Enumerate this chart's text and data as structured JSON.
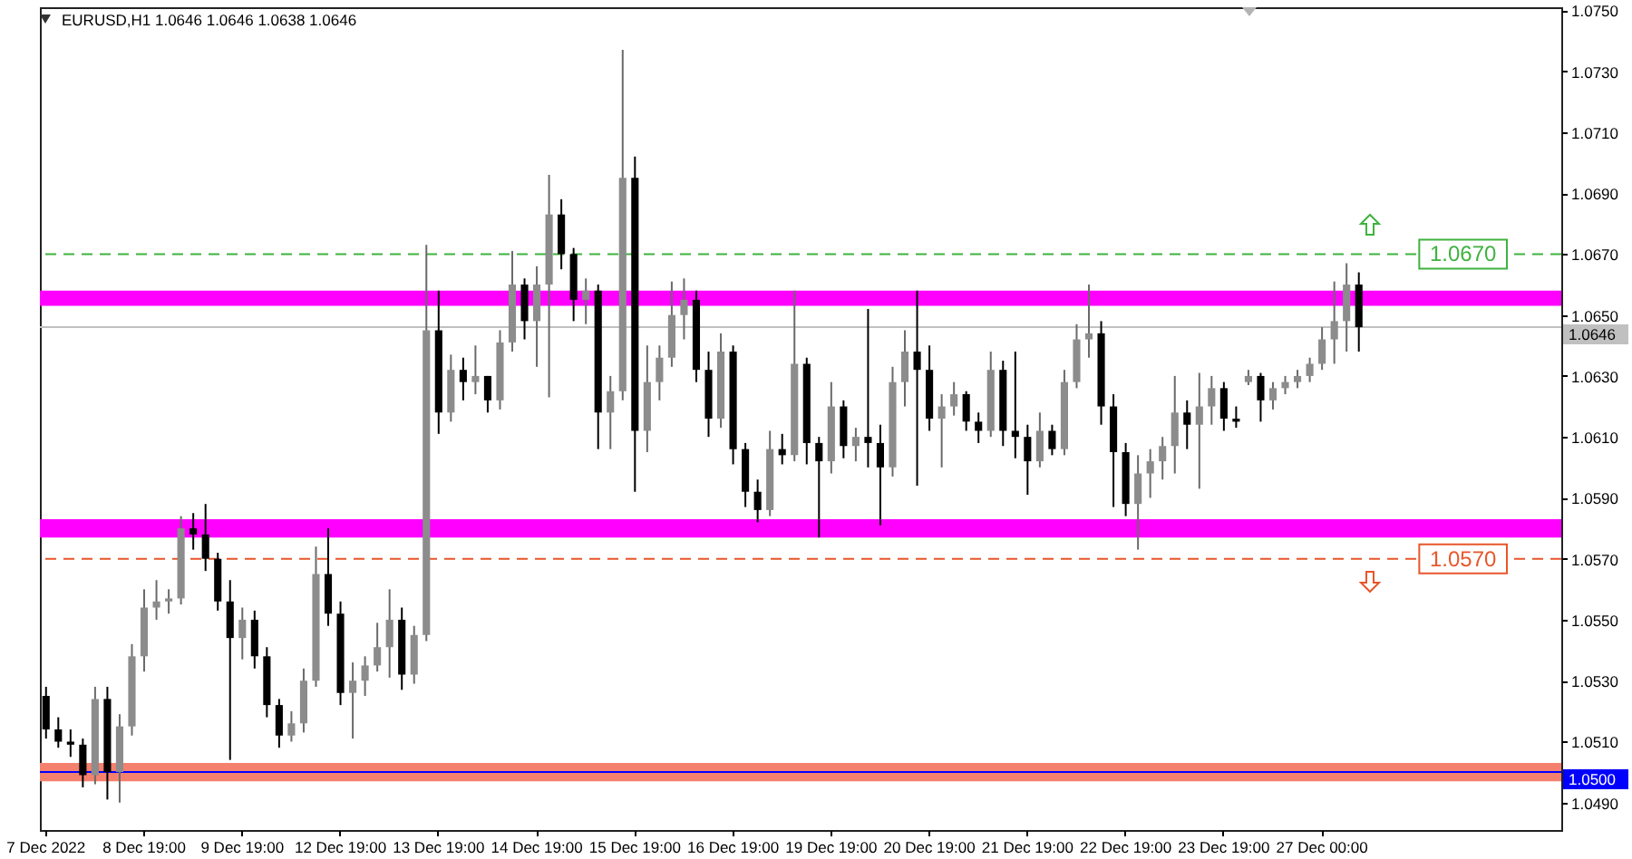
{
  "chart_data": {
    "type": "candlestick",
    "title": "EURUSD,H1 1.0646 1.0646 1.0638 1.0646",
    "categories": [
      "7 Dec 2022",
      null,
      null,
      null,
      null,
      null,
      null,
      null,
      "8 Dec 19:00",
      null,
      null,
      null,
      null,
      null,
      null,
      null,
      "9 Dec 19:00",
      null,
      null,
      null,
      null,
      null,
      null,
      null,
      "12 Dec 19:00",
      null,
      null,
      null,
      null,
      null,
      null,
      null,
      "13 Dec 19:00",
      null,
      null,
      null,
      null,
      null,
      null,
      null,
      "14 Dec 19:00",
      null,
      null,
      null,
      null,
      null,
      null,
      null,
      "15 Dec 19:00",
      null,
      null,
      null,
      null,
      null,
      null,
      null,
      "16 Dec 19:00",
      null,
      null,
      null,
      null,
      null,
      null,
      null,
      "19 Dec 19:00",
      null,
      null,
      null,
      null,
      null,
      null,
      null,
      "20 Dec 19:00",
      null,
      null,
      null,
      null,
      null,
      null,
      null,
      "21 Dec 19:00",
      null,
      null,
      null,
      null,
      null,
      null,
      null,
      "22 Dec 19:00",
      null,
      null,
      null,
      null,
      null,
      null,
      null,
      "23 Dec 19:00",
      null,
      null,
      null,
      null,
      null,
      null,
      null,
      "27 Dec 00:00",
      null,
      null,
      null,
      null,
      null,
      null,
      null,
      null,
      null,
      null,
      null,
      null,
      null,
      null,
      null,
      null,
      null,
      null,
      null
    ],
    "ohlc": [
      [
        1.0525,
        1.0528,
        1.0511,
        1.0514
      ],
      [
        1.0514,
        1.0518,
        1.0508,
        1.051
      ],
      [
        1.051,
        1.0514,
        1.0505,
        1.0509
      ],
      [
        1.0509,
        1.0511,
        1.0495,
        1.0499
      ],
      [
        1.0499,
        1.0528,
        1.0496,
        1.0524
      ],
      [
        1.0524,
        1.0528,
        1.0491,
        1.05
      ],
      [
        1.05,
        1.0519,
        1.049,
        1.0515
      ],
      [
        1.0515,
        1.0542,
        1.0512,
        1.0538
      ],
      [
        1.0538,
        1.056,
        1.0533,
        1.0554
      ],
      [
        1.0554,
        1.0563,
        1.055,
        1.0556
      ],
      [
        1.0556,
        1.056,
        1.0552,
        1.0557
      ],
      [
        1.0557,
        1.0584,
        1.0555,
        1.058
      ],
      [
        1.058,
        1.0585,
        1.0573,
        1.0578
      ],
      [
        1.0578,
        1.0588,
        1.0566,
        1.057
      ],
      [
        1.057,
        1.0572,
        1.0553,
        1.0556
      ],
      [
        1.0556,
        1.0563,
        1.0504,
        1.0544
      ],
      [
        1.0544,
        1.0554,
        1.0537,
        1.055
      ],
      [
        1.055,
        1.0553,
        1.0534,
        1.0538
      ],
      [
        1.0538,
        1.0541,
        1.0518,
        1.0522
      ],
      [
        1.0522,
        1.0524,
        1.0508,
        1.0512
      ],
      [
        1.0512,
        1.052,
        1.051,
        1.0516
      ],
      [
        1.0516,
        1.0534,
        1.0513,
        1.053
      ],
      [
        1.053,
        1.0574,
        1.0528,
        1.0565
      ],
      [
        1.0565,
        1.058,
        1.0548,
        1.0552
      ],
      [
        1.0552,
        1.0556,
        1.0522,
        1.0526
      ],
      [
        1.0526,
        1.0536,
        1.0511,
        1.053
      ],
      [
        1.053,
        1.0538,
        1.0525,
        1.0535
      ],
      [
        1.0535,
        1.0549,
        1.0533,
        1.0541
      ],
      [
        1.0541,
        1.056,
        1.0531,
        1.055
      ],
      [
        1.055,
        1.0554,
        1.0527,
        1.0532
      ],
      [
        1.0532,
        1.0548,
        1.0529,
        1.0545
      ],
      [
        1.0545,
        1.0673,
        1.0543,
        1.0645
      ],
      [
        1.0645,
        1.0658,
        1.0611,
        1.0618
      ],
      [
        1.0618,
        1.0637,
        1.0615,
        1.0632
      ],
      [
        1.0632,
        1.0636,
        1.0622,
        1.0628
      ],
      [
        1.0628,
        1.064,
        1.0624,
        1.063
      ],
      [
        1.063,
        1.063,
        1.0618,
        1.0622
      ],
      [
        1.0622,
        1.0645,
        1.0619,
        1.0641
      ],
      [
        1.0641,
        1.0671,
        1.0638,
        1.066
      ],
      [
        1.066,
        1.0662,
        1.0642,
        1.0648
      ],
      [
        1.0648,
        1.0666,
        1.0633,
        1.066
      ],
      [
        1.066,
        1.0696,
        1.0623,
        1.0683
      ],
      [
        1.0683,
        1.0688,
        1.0665,
        1.067
      ],
      [
        1.067,
        1.0672,
        1.0648,
        1.0655
      ],
      [
        1.0655,
        1.0662,
        1.0647,
        1.0658
      ],
      [
        1.0658,
        1.066,
        1.0606,
        1.0618
      ],
      [
        1.0618,
        1.063,
        1.0606,
        1.0625
      ],
      [
        1.0625,
        1.0737,
        1.0622,
        1.0695
      ],
      [
        1.0695,
        1.0702,
        1.0592,
        1.0612
      ],
      [
        1.0612,
        1.064,
        1.0605,
        1.0628
      ],
      [
        1.0628,
        1.064,
        1.0622,
        1.0636
      ],
      [
        1.0636,
        1.0661,
        1.0633,
        1.065
      ],
      [
        1.065,
        1.0662,
        1.0642,
        1.0655
      ],
      [
        1.0655,
        1.0658,
        1.0628,
        1.0632
      ],
      [
        1.0632,
        1.0638,
        1.061,
        1.0616
      ],
      [
        1.0616,
        1.0644,
        1.0613,
        1.0638
      ],
      [
        1.0638,
        1.064,
        1.0601,
        1.0606
      ],
      [
        1.0606,
        1.0608,
        1.0587,
        1.0592
      ],
      [
        1.0592,
        1.0596,
        1.0582,
        1.0586
      ],
      [
        1.0586,
        1.0612,
        1.0584,
        1.0606
      ],
      [
        1.0606,
        1.0611,
        1.0601,
        1.0604
      ],
      [
        1.0604,
        1.0658,
        1.0602,
        1.0634
      ],
      [
        1.0634,
        1.0636,
        1.0601,
        1.0608
      ],
      [
        1.0608,
        1.061,
        1.0577,
        1.0602
      ],
      [
        1.0602,
        1.0628,
        1.0598,
        1.062
      ],
      [
        1.062,
        1.0622,
        1.0603,
        1.0607
      ],
      [
        1.0607,
        1.0613,
        1.0602,
        1.061
      ],
      [
        1.061,
        1.0652,
        1.06,
        1.0608
      ],
      [
        1.0608,
        1.0614,
        1.0581,
        1.06
      ],
      [
        1.06,
        1.0633,
        1.0597,
        1.0628
      ],
      [
        1.0628,
        1.0645,
        1.062,
        1.0638
      ],
      [
        1.0638,
        1.0658,
        1.0594,
        1.0632
      ],
      [
        1.0632,
        1.064,
        1.0612,
        1.0616
      ],
      [
        1.0616,
        1.0624,
        1.06,
        1.062
      ],
      [
        1.062,
        1.0628,
        1.0617,
        1.0624
      ],
      [
        1.0624,
        1.0625,
        1.0612,
        1.0615
      ],
      [
        1.0615,
        1.0618,
        1.0608,
        1.0612
      ],
      [
        1.0612,
        1.0638,
        1.061,
        1.0632
      ],
      [
        1.0632,
        1.0635,
        1.0607,
        1.0612
      ],
      [
        1.0612,
        1.0638,
        1.0603,
        1.061
      ],
      [
        1.061,
        1.0614,
        1.0591,
        1.0602
      ],
      [
        1.0602,
        1.0618,
        1.06,
        1.0612
      ],
      [
        1.0612,
        1.0614,
        1.0604,
        1.0606
      ],
      [
        1.0606,
        1.0632,
        1.0604,
        1.0628
      ],
      [
        1.0628,
        1.0647,
        1.0626,
        1.0642
      ],
      [
        1.0642,
        1.066,
        1.0636,
        1.0644
      ],
      [
        1.0644,
        1.0648,
        1.0614,
        1.062
      ],
      [
        1.062,
        1.0624,
        1.0587,
        1.0605
      ],
      [
        1.0605,
        1.0608,
        1.0584,
        1.0588
      ],
      [
        1.0588,
        1.0604,
        1.0573,
        1.0598
      ],
      [
        1.0598,
        1.0606,
        1.059,
        1.0602
      ],
      [
        1.0602,
        1.061,
        1.0596,
        1.0607
      ],
      [
        1.0607,
        1.063,
        1.0598,
        1.0618
      ],
      [
        1.0618,
        1.0622,
        1.0606,
        1.0614
      ],
      [
        1.0614,
        1.0631,
        1.0593,
        1.062
      ],
      [
        1.062,
        1.063,
        1.0614,
        1.0626
      ],
      [
        1.0626,
        1.0628,
        1.0612,
        1.0616
      ],
      [
        1.0616,
        1.062,
        1.0613,
        1.0615
      ],
      [
        1.0628,
        1.0632,
        1.0627,
        1.063
      ],
      [
        1.063,
        1.0631,
        1.0615,
        1.0622
      ],
      [
        1.0622,
        1.0628,
        1.0619,
        1.0626
      ],
      [
        1.0626,
        1.063,
        1.0624,
        1.0628
      ],
      [
        1.0628,
        1.0632,
        1.0626,
        1.063
      ],
      [
        1.063,
        1.0636,
        1.0628,
        1.0634
      ],
      [
        1.0634,
        1.0646,
        1.0632,
        1.0642
      ],
      [
        1.0642,
        1.0661,
        1.0634,
        1.0648
      ],
      [
        1.0648,
        1.0667,
        1.0638,
        1.066
      ],
      [
        1.066,
        1.0664,
        1.0638,
        1.0646
      ],
      null,
      null,
      null,
      null,
      null,
      null,
      null,
      null,
      null,
      null,
      null,
      null,
      null,
      null,
      null,
      null
    ],
    "ylim": [
      1.0481,
      1.0751
    ],
    "yticks": [
      {
        "value": 1.049,
        "label": "1.0490"
      },
      {
        "value": 1.051,
        "label": "1.0510"
      },
      {
        "value": 1.053,
        "label": "1.0530"
      },
      {
        "value": 1.055,
        "label": "1.0550"
      },
      {
        "value": 1.057,
        "label": "1.0570"
      },
      {
        "value": 1.059,
        "label": "1.0590"
      },
      {
        "value": 1.061,
        "label": "1.0610"
      },
      {
        "value": 1.063,
        "label": "1.0630"
      },
      {
        "value": 1.065,
        "label": "1.0650"
      },
      {
        "value": 1.067,
        "label": "1.0670"
      },
      {
        "value": 1.069,
        "label": "1.0690"
      },
      {
        "value": 1.071,
        "label": "1.0710"
      },
      {
        "value": 1.073,
        "label": "1.0730"
      },
      {
        "value": 1.075,
        "label": "1.0750"
      }
    ],
    "ref_lines": [
      {
        "axis": "y",
        "value": 1.067,
        "label": "1.0670",
        "color": "#3fb23f",
        "line_style": "dashed"
      },
      {
        "axis": "y",
        "value": 1.057,
        "label": "1.0570",
        "color": "#e8562a",
        "line_style": "dashed"
      },
      {
        "axis": "y",
        "value": 1.05,
        "label": "1.0500",
        "color": "#0000ff",
        "line_style": "solid"
      },
      {
        "axis": "y",
        "value": 1.0646,
        "label": "1.0646",
        "color": "#c0c0c0",
        "line_style": "solid"
      }
    ],
    "bands": [
      {
        "axis": "y",
        "from": 1.0653,
        "to": 1.0658,
        "color": "#ff00ff"
      },
      {
        "axis": "y",
        "from": 1.0577,
        "to": 1.0583,
        "color": "#ff00ff"
      },
      {
        "axis": "y",
        "from": 1.0497,
        "to": 1.0503,
        "color": "#f4806e"
      }
    ]
  }
}
